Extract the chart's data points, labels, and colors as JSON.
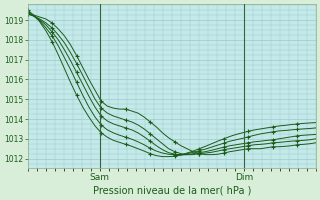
{
  "bg_color": "#d8eed8",
  "plot_bg_color": "#c5e8e8",
  "grid_color": "#99cccc",
  "line_color": "#1a5c1a",
  "xlabel": "Pression niveau de la mer( hPa )",
  "yticks": [
    1012,
    1013,
    1014,
    1015,
    1016,
    1017,
    1018,
    1019
  ],
  "ylim": [
    1011.5,
    1019.8
  ],
  "xlim": [
    0,
    48
  ],
  "sam_x": 12,
  "dim_x": 36,
  "series": [
    [
      1019.3,
      1019.25,
      1019.15,
      1019.05,
      1018.85,
      1018.55,
      1018.2,
      1017.75,
      1017.2,
      1016.6,
      1016.0,
      1015.45,
      1014.9,
      1014.65,
      1014.55,
      1014.5,
      1014.5,
      1014.4,
      1014.3,
      1014.1,
      1013.85,
      1013.6,
      1013.3,
      1013.05,
      1012.85,
      1012.65,
      1012.5,
      1012.35,
      1012.25,
      1012.2,
      1012.2,
      1012.22,
      1012.28,
      1012.35,
      1012.4,
      1012.45,
      1012.5,
      1012.5,
      1012.5,
      1012.55,
      1012.6,
      1012.6,
      1012.62,
      1012.65,
      1012.7,
      1012.72,
      1012.75,
      1012.8
    ],
    [
      1019.3,
      1019.2,
      1019.05,
      1018.85,
      1018.6,
      1018.25,
      1017.85,
      1017.35,
      1016.8,
      1016.2,
      1015.6,
      1015.0,
      1014.55,
      1014.3,
      1014.15,
      1014.05,
      1013.95,
      1013.85,
      1013.7,
      1013.5,
      1013.25,
      1013.0,
      1012.75,
      1012.5,
      1012.35,
      1012.25,
      1012.2,
      1012.2,
      1012.25,
      1012.28,
      1012.32,
      1012.38,
      1012.45,
      1012.5,
      1012.55,
      1012.6,
      1012.65,
      1012.7,
      1012.72,
      1012.75,
      1012.8,
      1012.82,
      1012.85,
      1012.88,
      1012.9,
      1012.92,
      1012.95,
      1013.0
    ],
    [
      1019.35,
      1019.2,
      1019.0,
      1018.75,
      1018.4,
      1018.0,
      1017.5,
      1016.95,
      1016.35,
      1015.75,
      1015.15,
      1014.6,
      1014.15,
      1013.9,
      1013.75,
      1013.65,
      1013.55,
      1013.45,
      1013.3,
      1013.1,
      1012.88,
      1012.65,
      1012.45,
      1012.3,
      1012.22,
      1012.18,
      1012.2,
      1012.25,
      1012.3,
      1012.35,
      1012.42,
      1012.5,
      1012.58,
      1012.65,
      1012.7,
      1012.75,
      1012.8,
      1012.85,
      1012.88,
      1012.92,
      1012.95,
      1013.0,
      1013.05,
      1013.1,
      1013.15,
      1013.18,
      1013.2,
      1013.22
    ],
    [
      1019.4,
      1019.2,
      1018.95,
      1018.6,
      1018.2,
      1017.7,
      1017.1,
      1016.5,
      1015.85,
      1015.2,
      1014.6,
      1014.1,
      1013.7,
      1013.45,
      1013.3,
      1013.18,
      1013.08,
      1012.98,
      1012.85,
      1012.7,
      1012.52,
      1012.38,
      1012.28,
      1012.22,
      1012.2,
      1012.2,
      1012.25,
      1012.32,
      1012.4,
      1012.48,
      1012.58,
      1012.68,
      1012.78,
      1012.88,
      1012.95,
      1013.02,
      1013.1,
      1013.18,
      1013.25,
      1013.3,
      1013.35,
      1013.4,
      1013.42,
      1013.45,
      1013.48,
      1013.5,
      1013.52,
      1013.55
    ],
    [
      1019.5,
      1019.25,
      1018.9,
      1018.45,
      1017.9,
      1017.25,
      1016.55,
      1015.85,
      1015.2,
      1014.6,
      1014.1,
      1013.65,
      1013.3,
      1013.08,
      1012.92,
      1012.82,
      1012.72,
      1012.62,
      1012.5,
      1012.38,
      1012.25,
      1012.15,
      1012.1,
      1012.1,
      1012.12,
      1012.18,
      1012.28,
      1012.38,
      1012.5,
      1012.62,
      1012.75,
      1012.88,
      1013.0,
      1013.12,
      1013.22,
      1013.3,
      1013.38,
      1013.45,
      1013.5,
      1013.55,
      1013.6,
      1013.65,
      1013.68,
      1013.72,
      1013.75,
      1013.78,
      1013.8,
      1013.82
    ]
  ]
}
